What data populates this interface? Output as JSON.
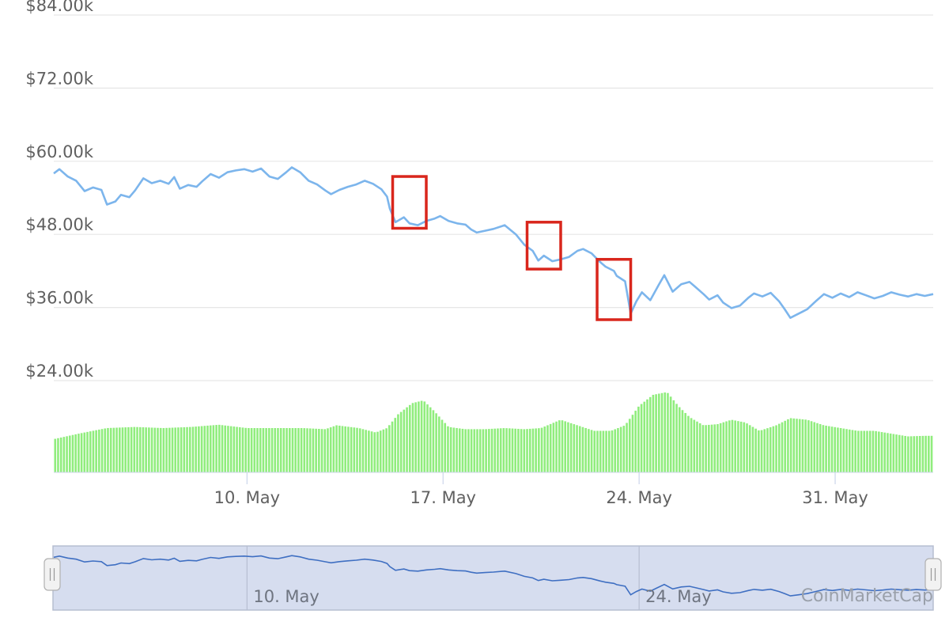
{
  "chart_data": {
    "type": "line",
    "y_axis": {
      "ticks": [
        "$84.00k",
        "$72.00k",
        "$60.00k",
        "$48.00k",
        "$36.00k",
        "$24.00k"
      ],
      "tick_values": [
        84000,
        72000,
        60000,
        48000,
        36000,
        24000
      ],
      "range": [
        24000,
        84000
      ]
    },
    "x_axis": {
      "ticks": [
        "10. May",
        "17. May",
        "24. May",
        "31. May"
      ],
      "tick_days": [
        10,
        17,
        24,
        31
      ],
      "range_days": [
        3.1,
        34.5
      ]
    },
    "grid": true,
    "price_series": {
      "color": "#7cb5ec",
      "points": [
        [
          3.1,
          58000
        ],
        [
          3.3,
          58700
        ],
        [
          3.6,
          57500
        ],
        [
          3.9,
          56800
        ],
        [
          4.2,
          55100
        ],
        [
          4.5,
          55700
        ],
        [
          4.8,
          55300
        ],
        [
          5.0,
          52900
        ],
        [
          5.3,
          53400
        ],
        [
          5.5,
          54500
        ],
        [
          5.8,
          54100
        ],
        [
          6.0,
          55200
        ],
        [
          6.3,
          57200
        ],
        [
          6.6,
          56400
        ],
        [
          6.9,
          56800
        ],
        [
          7.2,
          56300
        ],
        [
          7.4,
          57400
        ],
        [
          7.6,
          55500
        ],
        [
          7.9,
          56100
        ],
        [
          8.2,
          55800
        ],
        [
          8.4,
          56700
        ],
        [
          8.7,
          57900
        ],
        [
          9.0,
          57300
        ],
        [
          9.3,
          58200
        ],
        [
          9.6,
          58500
        ],
        [
          9.9,
          58700
        ],
        [
          10.2,
          58300
        ],
        [
          10.5,
          58800
        ],
        [
          10.8,
          57500
        ],
        [
          11.1,
          57100
        ],
        [
          11.4,
          58200
        ],
        [
          11.6,
          59000
        ],
        [
          11.9,
          58200
        ],
        [
          12.2,
          56800
        ],
        [
          12.5,
          56200
        ],
        [
          12.8,
          55200
        ],
        [
          13.0,
          54600
        ],
        [
          13.3,
          55300
        ],
        [
          13.6,
          55800
        ],
        [
          13.9,
          56200
        ],
        [
          14.2,
          56800
        ],
        [
          14.5,
          56300
        ],
        [
          14.8,
          55400
        ],
        [
          15.0,
          54200
        ],
        [
          15.1,
          52200
        ],
        [
          15.3,
          50000
        ],
        [
          15.6,
          50800
        ],
        [
          15.8,
          49800
        ],
        [
          16.1,
          49500
        ],
        [
          16.4,
          50200
        ],
        [
          16.7,
          50600
        ],
        [
          16.9,
          51000
        ],
        [
          17.2,
          50200
        ],
        [
          17.5,
          49800
        ],
        [
          17.8,
          49600
        ],
        [
          18.0,
          48800
        ],
        [
          18.2,
          48300
        ],
        [
          18.5,
          48600
        ],
        [
          18.8,
          48900
        ],
        [
          19.2,
          49500
        ],
        [
          19.6,
          48000
        ],
        [
          19.9,
          46300
        ],
        [
          20.2,
          45300
        ],
        [
          20.4,
          43700
        ],
        [
          20.6,
          44500
        ],
        [
          20.9,
          43600
        ],
        [
          21.2,
          43900
        ],
        [
          21.5,
          44300
        ],
        [
          21.8,
          45300
        ],
        [
          22.0,
          45600
        ],
        [
          22.3,
          44900
        ],
        [
          22.6,
          43500
        ],
        [
          22.8,
          42700
        ],
        [
          23.1,
          42000
        ],
        [
          23.2,
          41200
        ],
        [
          23.5,
          40300
        ],
        [
          23.7,
          35000
        ],
        [
          23.9,
          37000
        ],
        [
          24.1,
          38500
        ],
        [
          24.4,
          37200
        ],
        [
          24.7,
          39700
        ],
        [
          24.9,
          41300
        ],
        [
          25.2,
          38600
        ],
        [
          25.5,
          39800
        ],
        [
          25.8,
          40200
        ],
        [
          26.0,
          39400
        ],
        [
          26.3,
          38200
        ],
        [
          26.5,
          37300
        ],
        [
          26.8,
          38000
        ],
        [
          27.0,
          36800
        ],
        [
          27.3,
          35900
        ],
        [
          27.6,
          36300
        ],
        [
          27.9,
          37600
        ],
        [
          28.1,
          38300
        ],
        [
          28.4,
          37800
        ],
        [
          28.7,
          38400
        ],
        [
          29.0,
          37000
        ],
        [
          29.2,
          35700
        ],
        [
          29.4,
          34300
        ],
        [
          29.7,
          35000
        ],
        [
          30.0,
          35700
        ],
        [
          30.3,
          37000
        ],
        [
          30.6,
          38200
        ],
        [
          30.9,
          37600
        ],
        [
          31.2,
          38300
        ],
        [
          31.5,
          37700
        ],
        [
          31.8,
          38500
        ],
        [
          32.1,
          38000
        ],
        [
          32.4,
          37500
        ],
        [
          32.7,
          37900
        ],
        [
          33.0,
          38500
        ],
        [
          33.3,
          38100
        ],
        [
          33.6,
          37800
        ],
        [
          33.9,
          38200
        ],
        [
          34.2,
          37900
        ],
        [
          34.5,
          38200
        ]
      ]
    },
    "volume_series": {
      "color": "#90ed7d",
      "points": [
        [
          3.1,
          6.0
        ],
        [
          4.0,
          7.0
        ],
        [
          5.0,
          8.0
        ],
        [
          6.0,
          8.2
        ],
        [
          7.0,
          8.0
        ],
        [
          8.0,
          8.2
        ],
        [
          9.0,
          8.6
        ],
        [
          10.0,
          8.0
        ],
        [
          11.0,
          8.0
        ],
        [
          12.0,
          8.0
        ],
        [
          12.8,
          7.8
        ],
        [
          13.2,
          8.5
        ],
        [
          14.0,
          8.0
        ],
        [
          14.6,
          7.2
        ],
        [
          15.0,
          8.0
        ],
        [
          15.4,
          10.5
        ],
        [
          15.9,
          12.5
        ],
        [
          16.3,
          13.0
        ],
        [
          16.7,
          11.0
        ],
        [
          17.2,
          8.2
        ],
        [
          17.8,
          7.8
        ],
        [
          18.5,
          7.8
        ],
        [
          19.2,
          8.0
        ],
        [
          19.9,
          7.8
        ],
        [
          20.5,
          8.0
        ],
        [
          21.2,
          9.5
        ],
        [
          21.8,
          8.5
        ],
        [
          22.4,
          7.5
        ],
        [
          23.0,
          7.5
        ],
        [
          23.5,
          8.5
        ],
        [
          24.0,
          12.0
        ],
        [
          24.5,
          14.0
        ],
        [
          25.0,
          14.5
        ],
        [
          25.4,
          12.0
        ],
        [
          25.8,
          10.0
        ],
        [
          26.3,
          8.5
        ],
        [
          26.8,
          8.7
        ],
        [
          27.3,
          9.5
        ],
        [
          27.8,
          9.0
        ],
        [
          28.3,
          7.5
        ],
        [
          28.9,
          8.5
        ],
        [
          29.4,
          9.8
        ],
        [
          30.0,
          9.5
        ],
        [
          30.6,
          8.5
        ],
        [
          31.2,
          8.0
        ],
        [
          31.8,
          7.5
        ],
        [
          32.4,
          7.5
        ],
        [
          33.0,
          7.0
        ],
        [
          33.6,
          6.5
        ],
        [
          34.2,
          6.6
        ],
        [
          34.5,
          6.6
        ]
      ]
    },
    "annotation_boxes": [
      {
        "x_range": [
          15.2,
          16.4
        ],
        "y_range": [
          49000,
          57500
        ]
      },
      {
        "x_range": [
          20.0,
          21.2
        ],
        "y_range": [
          42300,
          50000
        ]
      },
      {
        "x_range": [
          22.5,
          23.7
        ],
        "y_range": [
          34000,
          43900
        ]
      }
    ],
    "navigator": {
      "labels": [
        "10. May",
        "24. May"
      ],
      "label_days": [
        10,
        24
      ],
      "selected_range_days": [
        3.1,
        34.5
      ]
    },
    "credit": "CoinMarketCap"
  }
}
